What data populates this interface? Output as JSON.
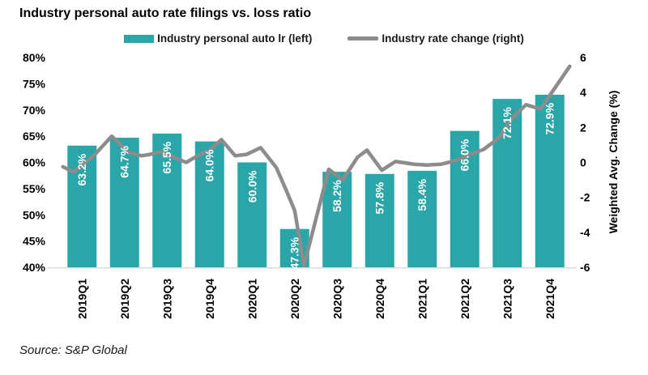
{
  "title": "Industry personal auto rate filings vs. loss ratio",
  "source": "Source: S&P Global",
  "colors": {
    "bar": "#2AA5A8",
    "line": "#8C8C8C",
    "baseline": "#D9D9D9",
    "text": "#000000",
    "bar_label": "#FFFFFF"
  },
  "legend": {
    "items": [
      {
        "label": "Industry personal auto lr (left)",
        "swatch": "bar",
        "color": "#2AA5A8"
      },
      {
        "label": "Industry rate change (right)",
        "swatch": "line",
        "color": "#8C8C8C"
      }
    ]
  },
  "chart_data": {
    "type": "bar",
    "title": "Industry personal auto rate filings vs. loss ratio",
    "categories": [
      "2019Q1",
      "2019Q2",
      "2019Q3",
      "2019Q4",
      "2020Q1",
      "2020Q2",
      "2020Q3",
      "2020Q4",
      "2021Q1",
      "2021Q2",
      "2021Q3",
      "2021Q4"
    ],
    "series": [
      {
        "name": "Industry personal auto lr (left)",
        "type": "bar",
        "axis": "left",
        "color": "#2AA5A8",
        "values": [
          63.2,
          64.7,
          65.5,
          64.0,
          60.0,
          47.3,
          58.2,
          57.8,
          58.4,
          66.0,
          72.1,
          72.9
        ],
        "labels": [
          "63.2%",
          "64.7%",
          "65.5%",
          "64.0%",
          "60.0%",
          "47.3%",
          "58.2%",
          "57.8%",
          "58.4%",
          "66.0%",
          "72.1%",
          "72.9%"
        ]
      },
      {
        "name": "Industry rate change (right)",
        "type": "line",
        "axis": "right",
        "color": "#8C8C8C",
        "x_unit": "quarter index (0 = 2019Q1 bar center), sub-quarter (monthly) resolution, values estimated from gridlines",
        "points": [
          [
            -0.45,
            -0.25
          ],
          [
            -0.2,
            -0.55
          ],
          [
            0.3,
            0.45
          ],
          [
            0.7,
            1.5
          ],
          [
            1.1,
            0.55
          ],
          [
            1.4,
            0.38
          ],
          [
            1.6,
            0.46
          ],
          [
            1.85,
            0.6
          ],
          [
            2.3,
            0.15
          ],
          [
            2.45,
            0.0
          ],
          [
            2.7,
            0.35
          ],
          [
            3.0,
            0.7
          ],
          [
            3.28,
            1.3
          ],
          [
            3.6,
            0.38
          ],
          [
            3.87,
            0.46
          ],
          [
            4.2,
            0.84
          ],
          [
            4.57,
            -0.3
          ],
          [
            4.82,
            -1.7
          ],
          [
            5.0,
            -2.75
          ],
          [
            5.22,
            -5.9
          ],
          [
            5.8,
            -0.4
          ],
          [
            6.13,
            -1.0
          ],
          [
            6.48,
            0.3
          ],
          [
            6.7,
            0.7
          ],
          [
            7.05,
            -0.45
          ],
          [
            7.37,
            0.05
          ],
          [
            7.8,
            -0.1
          ],
          [
            8.1,
            -0.15
          ],
          [
            8.45,
            -0.1
          ],
          [
            8.78,
            0.1
          ],
          [
            9.12,
            0.45
          ],
          [
            9.45,
            0.75
          ],
          [
            9.8,
            1.4
          ],
          [
            10.1,
            2.5
          ],
          [
            10.44,
            3.3
          ],
          [
            10.78,
            3.05
          ],
          [
            11.47,
            5.5
          ]
        ]
      }
    ],
    "left_axis": {
      "min": 40,
      "max": 80,
      "step": 5,
      "tick_values": [
        80,
        75,
        70,
        65,
        60,
        55,
        50,
        45,
        40
      ],
      "tick_labels": [
        "80%",
        "75%",
        "70%",
        "65%",
        "60%",
        "55%",
        "50%",
        "45%",
        "40%"
      ]
    },
    "right_axis": {
      "min": -6,
      "max": 6,
      "step": 2,
      "title": "Weighted Avg. Change (%)",
      "tick_values": [
        6,
        4,
        2,
        0,
        -2,
        -4,
        -6
      ],
      "tick_labels": [
        "6",
        "4",
        "2",
        "0",
        "-2",
        "-4",
        "-6"
      ]
    },
    "grid": false,
    "legend_position": "top"
  }
}
